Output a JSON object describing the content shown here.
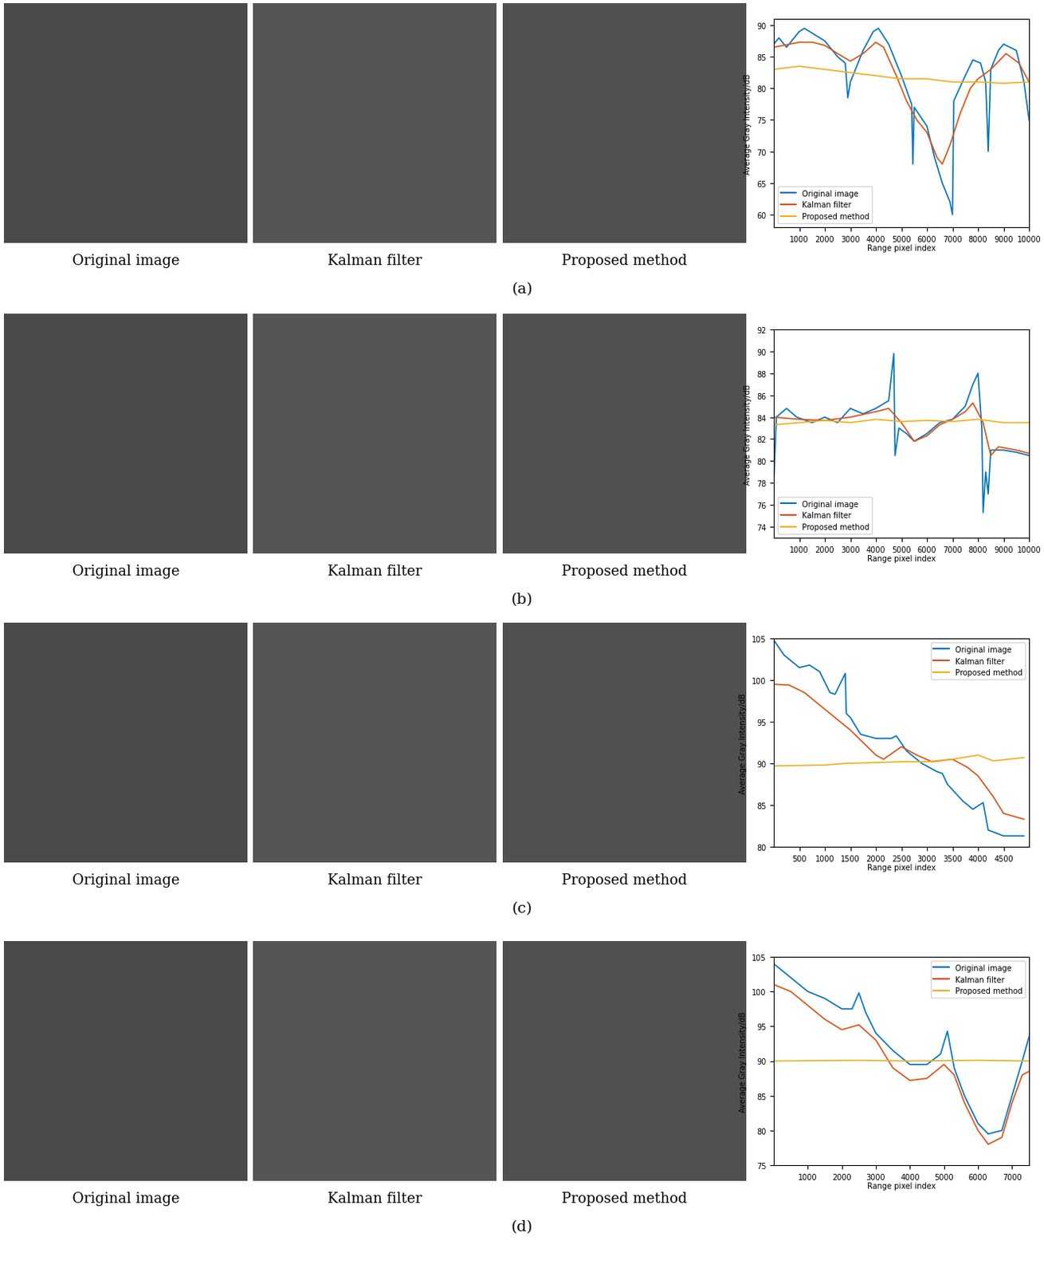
{
  "panels": [
    {
      "label": "(a)",
      "captions": [
        "Original image",
        "Kalman filter",
        "Proposed method"
      ]
    },
    {
      "label": "(b)",
      "captions": [
        "Original image",
        "Kalman filter",
        "Proposed method"
      ]
    },
    {
      "label": "(c)",
      "captions": [
        "Original image",
        "Kalman filter",
        "Proposed method"
      ]
    },
    {
      "label": "(d)",
      "captions": [
        "Original image",
        "Kalman filter",
        "Proposed method"
      ]
    }
  ],
  "chart_data": [
    {
      "type": "line",
      "x_label": "Range pixel index",
      "y_label": "Average Gray Intensity/dB",
      "xlim": [
        0,
        10000
      ],
      "xticks": [
        1000,
        2000,
        3000,
        4000,
        5000,
        6000,
        7000,
        8000,
        9000,
        10000
      ],
      "ylim": [
        58,
        91
      ],
      "yticks": [
        60,
        65,
        70,
        75,
        80,
        85,
        90
      ],
      "legend": "lower left",
      "series": [
        {
          "name": "Original image",
          "color": "#0072BD",
          "x": [
            0,
            200,
            500,
            1000,
            1200,
            2000,
            2500,
            2800,
            2900,
            3000,
            3500,
            3900,
            4100,
            4500,
            5000,
            5400,
            5450,
            5500,
            6000,
            6300,
            6600,
            6900,
            7000,
            7050,
            7500,
            7800,
            8100,
            8300,
            8400,
            8500,
            8800,
            9000,
            9500,
            9800,
            10000
          ],
          "values": [
            87,
            88,
            86.5,
            89,
            89.5,
            87.5,
            85,
            84,
            78.5,
            81,
            86,
            89,
            89.5,
            87,
            82,
            77.5,
            68,
            77,
            74,
            69,
            65,
            62,
            60,
            78,
            82,
            84.5,
            84,
            81,
            70,
            83,
            86,
            87,
            86,
            81,
            75
          ]
        },
        {
          "name": "Kalman filter",
          "color": "#D95319",
          "x": [
            0,
            1000,
            1500,
            2000,
            2500,
            3000,
            3500,
            4000,
            4300,
            4800,
            5200,
            5600,
            6000,
            6400,
            6600,
            6900,
            7300,
            7700,
            8000,
            8500,
            9100,
            9600,
            10000
          ],
          "values": [
            86.5,
            87.3,
            87.3,
            86.8,
            85.5,
            84.3,
            85.5,
            87.3,
            86.5,
            82,
            78,
            75,
            73,
            69,
            68,
            71,
            76,
            80,
            81.5,
            83,
            85.5,
            84,
            81
          ]
        },
        {
          "name": "Proposed method",
          "color": "#EDB120",
          "x": [
            0,
            1000,
            2000,
            3000,
            4000,
            5000,
            6000,
            7000,
            8000,
            9000,
            10000
          ],
          "values": [
            83,
            83.5,
            83,
            82.5,
            82,
            81.5,
            81.5,
            81,
            81,
            80.8,
            81
          ]
        }
      ]
    },
    {
      "type": "line",
      "x_label": "Range pixel index",
      "y_label": "Average Gray Intensity/dB",
      "xlim": [
        0,
        10000
      ],
      "xticks": [
        1000,
        2000,
        3000,
        4000,
        5000,
        6000,
        7000,
        8000,
        9000,
        10000
      ],
      "ylim": [
        73,
        92
      ],
      "yticks": [
        74,
        76,
        78,
        80,
        82,
        84,
        86,
        88,
        90,
        92
      ],
      "legend": "lower left",
      "series": [
        {
          "name": "Original image",
          "color": "#0072BD",
          "x": [
            0,
            100,
            500,
            900,
            1500,
            2000,
            2500,
            3000,
            3500,
            4000,
            4500,
            4700,
            4750,
            4900,
            5200,
            5500,
            6000,
            6500,
            7000,
            7500,
            7800,
            8000,
            8150,
            8200,
            8300,
            8400,
            8500,
            9000,
            9500,
            10000
          ],
          "values": [
            78,
            84,
            84.8,
            84,
            83.5,
            84,
            83.5,
            84.8,
            84.3,
            84.8,
            85.5,
            89.8,
            80.5,
            83,
            82.5,
            81.8,
            82.5,
            83.5,
            83.8,
            85,
            87,
            88,
            83,
            75.3,
            79,
            77,
            81,
            81,
            80.8,
            80.5
          ]
        },
        {
          "name": "Kalman filter",
          "color": "#D95319",
          "x": [
            0,
            1000,
            2000,
            3000,
            4000,
            4500,
            5000,
            5500,
            6000,
            6500,
            7000,
            7500,
            7800,
            8200,
            8500,
            8800,
            9500,
            10000
          ],
          "values": [
            84,
            83.8,
            83.7,
            84,
            84.5,
            84.8,
            83.5,
            81.8,
            82.3,
            83.3,
            83.8,
            84.5,
            85.3,
            83.5,
            80.5,
            81.3,
            81,
            80.7
          ]
        },
        {
          "name": "Proposed method",
          "color": "#EDB120",
          "x": [
            0,
            1000,
            2000,
            3000,
            4000,
            5000,
            6000,
            7000,
            8000,
            9000,
            10000
          ],
          "values": [
            83.3,
            83.5,
            83.7,
            83.5,
            83.8,
            83.6,
            83.7,
            83.6,
            83.8,
            83.5,
            83.5
          ]
        }
      ]
    },
    {
      "type": "line",
      "x_label": "Range pixel index",
      "y_label": "Average Gray Intensity/dB",
      "xlim": [
        0,
        5000
      ],
      "xticks": [
        500,
        1000,
        1500,
        2000,
        2500,
        3000,
        3500,
        4000,
        4500
      ],
      "ylim": [
        80,
        105
      ],
      "yticks": [
        80,
        85,
        90,
        95,
        100,
        105
      ],
      "legend": "upper right",
      "series": [
        {
          "name": "Original image",
          "color": "#0072BD",
          "x": [
            0,
            200,
            500,
            700,
            900,
            1100,
            1200,
            1400,
            1420,
            1500,
            1700,
            2000,
            2300,
            2400,
            2600,
            2900,
            3200,
            3300,
            3400,
            3700,
            3900,
            4100,
            4200,
            4500,
            4900
          ],
          "values": [
            104.8,
            103,
            101.5,
            101.8,
            101,
            98.5,
            98.3,
            100.8,
            96,
            95.5,
            93.5,
            93,
            93,
            93.3,
            91.5,
            90,
            89,
            88.8,
            87.5,
            85.5,
            84.5,
            85.3,
            82,
            81.3,
            81.3
          ]
        },
        {
          "name": "Kalman filter",
          "color": "#D95319",
          "x": [
            0,
            300,
            600,
            1000,
            1500,
            2000,
            2150,
            2500,
            2800,
            3100,
            3500,
            3800,
            4000,
            4300,
            4500,
            4900
          ],
          "values": [
            99.5,
            99.4,
            98.5,
            96.5,
            94,
            91,
            90.5,
            92,
            91,
            90.2,
            90.5,
            89.5,
            88.5,
            86,
            84,
            83.3
          ]
        },
        {
          "name": "Proposed method",
          "color": "#EDB120",
          "x": [
            0,
            1000,
            1400,
            2000,
            2500,
            3000,
            3500,
            4000,
            4300,
            4600,
            4900
          ],
          "values": [
            89.7,
            89.8,
            90,
            90.1,
            90.2,
            90.2,
            90.5,
            91,
            90.3,
            90.5,
            90.7
          ]
        }
      ]
    },
    {
      "type": "line",
      "x_label": "Range pixel index",
      "y_label": "Average Gray Intensity/dB",
      "xlim": [
        0,
        7500
      ],
      "xticks": [
        1000,
        2000,
        3000,
        4000,
        5000,
        6000,
        7000
      ],
      "ylim": [
        75,
        105
      ],
      "yticks": [
        75,
        80,
        85,
        90,
        95,
        100,
        105
      ],
      "legend": "upper right",
      "series": [
        {
          "name": "Original image",
          "color": "#0072BD",
          "x": [
            0,
            500,
            1000,
            1500,
            2000,
            2300,
            2500,
            2700,
            3000,
            3500,
            4000,
            4500,
            4900,
            5100,
            5300,
            5600,
            6000,
            6300,
            6700,
            7000,
            7300,
            7500
          ],
          "values": [
            104,
            102,
            100,
            99,
            97.5,
            97.5,
            99.8,
            97,
            94,
            91.5,
            89.5,
            89.5,
            91,
            94.3,
            89,
            85,
            81,
            79.5,
            80,
            85,
            90,
            93.5
          ]
        },
        {
          "name": "Kalman filter",
          "color": "#D95319",
          "x": [
            0,
            500,
            1000,
            1500,
            2000,
            2500,
            3000,
            3500,
            4000,
            4500,
            5000,
            5300,
            5600,
            6000,
            6300,
            6700,
            7000,
            7300,
            7500
          ],
          "values": [
            101,
            100,
            98,
            96,
            94.5,
            95.2,
            93,
            89,
            87.2,
            87.5,
            89.5,
            88,
            84,
            80,
            78,
            79,
            84,
            88,
            88.5
          ]
        },
        {
          "name": "Proposed method",
          "color": "#EDB120",
          "x": [
            0,
            2500,
            4000,
            6000,
            7500
          ],
          "values": [
            90,
            90.1,
            90,
            90.1,
            90
          ]
        }
      ]
    }
  ]
}
